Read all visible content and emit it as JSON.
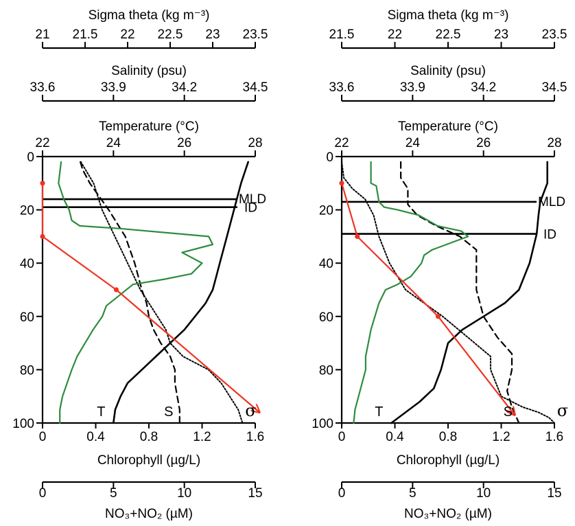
{
  "colors": {
    "temperature": "#000000",
    "salinity": "#000000",
    "sigma_theta": "#000000",
    "chlorophyll": "#2e8b3e",
    "nitrate": "#ee3424"
  },
  "axis_titles": {
    "sigma": "Sigma theta (kg m⁻³)",
    "salinity": "Salinity (psu)",
    "temperature": "Temperature (°C)",
    "chlorophyll": "Chlorophyll (µg/L)",
    "nitrate": "NO₃+NO₂ (µM)"
  },
  "curve_labels": {
    "temperature": "T",
    "salinity": "S",
    "sigma": "σ"
  },
  "chart_data": [
    {
      "type": "line",
      "panel": "left",
      "ylim": [
        100,
        0
      ],
      "yticks": [
        "0",
        "20",
        "40",
        "60",
        "80",
        "100"
      ],
      "axes": {
        "sigma": {
          "range": [
            21,
            23.5
          ],
          "ticks": [
            "21",
            "21.5",
            "22",
            "22.5",
            "23",
            "23.5"
          ]
        },
        "salinity": {
          "range": [
            33.6,
            34.5
          ],
          "ticks": [
            "33.6",
            "33.9",
            "34.2",
            "34.5"
          ]
        },
        "temperature": {
          "range": [
            22,
            28
          ],
          "ticks": [
            "22",
            "24",
            "26",
            "28"
          ]
        },
        "chlorophyll": {
          "range": [
            0,
            1.6
          ],
          "ticks": [
            "0",
            "0.4",
            "0.8",
            "1.2",
            "1.6"
          ]
        },
        "nitrate": {
          "range": [
            0,
            15
          ],
          "ticks": [
            "0",
            "5",
            "10",
            "15"
          ]
        }
      },
      "layers": [
        {
          "label": "MLD",
          "depth": 16
        },
        {
          "label": "ID",
          "depth": 19
        }
      ],
      "series": [
        {
          "var": "temperature",
          "x": [
            27.8,
            27.6,
            27.4,
            27.2,
            27.0,
            26.9,
            26.8,
            26.6,
            26.3,
            26.0,
            25.6,
            25.2,
            24.8,
            24.4,
            24.2,
            24.05,
            24.0
          ],
          "y": [
            2,
            10,
            20,
            30,
            40,
            45,
            50,
            55,
            60,
            65,
            70,
            75,
            80,
            85,
            90,
            95,
            100
          ]
        },
        {
          "var": "salinity",
          "x": [
            33.76,
            33.77,
            33.8,
            33.88,
            33.95,
            33.99,
            34.02,
            34.04,
            34.05,
            34.07,
            34.1,
            34.14,
            34.16,
            34.16,
            34.17,
            34.18,
            34.18
          ],
          "y": [
            2,
            5,
            10,
            20,
            30,
            40,
            50,
            55,
            60,
            65,
            70,
            75,
            80,
            85,
            90,
            95,
            100
          ]
        },
        {
          "var": "sigma",
          "x": [
            21.45,
            21.6,
            21.7,
            21.85,
            22.0,
            22.15,
            22.35,
            22.45,
            22.5,
            22.65,
            22.95,
            23.1,
            23.2,
            23.3,
            23.35
          ],
          "y": [
            2,
            10,
            20,
            30,
            40,
            50,
            60,
            65,
            70,
            75,
            80,
            85,
            90,
            95,
            100
          ]
        },
        {
          "var": "chlorophyll",
          "x": [
            0.14,
            0.12,
            0.16,
            0.2,
            0.22,
            0.28,
            0.58,
            1.25,
            1.28,
            1.05,
            1.2,
            1.12,
            0.92,
            0.68,
            0.58,
            0.48,
            0.45,
            0.38,
            0.32,
            0.26,
            0.22,
            0.15,
            0.13,
            0.13
          ],
          "y": [
            2,
            10,
            16,
            20,
            24,
            26,
            27,
            30,
            33,
            36,
            40,
            44,
            46,
            48,
            52,
            56,
            60,
            65,
            70,
            75,
            80,
            90,
            95,
            100
          ]
        },
        {
          "var": "nitrate",
          "x": [
            0,
            0,
            5.2,
            15.3
          ],
          "y": [
            10,
            30,
            50,
            96
          ],
          "markers": [
            true,
            true,
            true,
            false
          ]
        }
      ]
    },
    {
      "type": "line",
      "panel": "right",
      "ylim": [
        100,
        0
      ],
      "yticks": [
        "0",
        "20",
        "40",
        "60",
        "80",
        "100"
      ],
      "axes": {
        "sigma": {
          "range": [
            21.5,
            23.5
          ],
          "ticks": [
            "21.5",
            "22",
            "22.5",
            "23",
            "23.5"
          ]
        },
        "salinity": {
          "range": [
            33.6,
            34.5
          ],
          "ticks": [
            "33.6",
            "33.9",
            "34.2",
            "34.5"
          ]
        },
        "temperature": {
          "range": [
            22,
            28
          ],
          "ticks": [
            "22",
            "24",
            "26",
            "28"
          ]
        },
        "chlorophyll": {
          "range": [
            0,
            1.6
          ],
          "ticks": [
            "0",
            "0.4",
            "0.8",
            "1.2",
            "1.6"
          ]
        },
        "nitrate": {
          "range": [
            0,
            15
          ],
          "ticks": [
            "0",
            "5",
            "10",
            "15"
          ]
        }
      },
      "layers": [
        {
          "label": "MLD",
          "depth": 17
        },
        {
          "label": "ID",
          "depth": 29
        }
      ],
      "series": [
        {
          "var": "temperature",
          "x": [
            27.8,
            27.8,
            27.6,
            27.55,
            27.5,
            27.3,
            27.0,
            26.6,
            26.0,
            25.4,
            25.0,
            24.9,
            24.8,
            24.6,
            24.2,
            23.8,
            23.4
          ],
          "y": [
            2,
            10,
            17,
            22,
            29,
            40,
            50,
            55,
            60,
            65,
            70,
            75,
            80,
            87,
            92,
            96,
            100
          ]
        },
        {
          "var": "salinity",
          "x": [
            33.85,
            33.85,
            33.88,
            33.88,
            33.92,
            34.0,
            34.1,
            34.17,
            34.17,
            34.17,
            34.2,
            34.26,
            34.32,
            34.32,
            34.3,
            34.32,
            34.35
          ],
          "y": [
            2,
            8,
            12,
            18,
            22,
            26,
            30,
            35,
            40,
            50,
            60,
            68,
            74,
            80,
            88,
            94,
            100
          ]
        },
        {
          "var": "sigma",
          "x": [
            21.5,
            21.52,
            21.6,
            21.72,
            21.8,
            21.85,
            21.95,
            22.1,
            22.45,
            22.75,
            22.9,
            22.9,
            23.0,
            23.2,
            23.35,
            23.45,
            23.5
          ],
          "y": [
            2,
            8,
            12,
            16,
            22,
            30,
            40,
            50,
            60,
            70,
            75,
            80,
            90,
            94,
            96,
            98,
            100
          ]
        },
        {
          "var": "chlorophyll",
          "x": [
            0.22,
            0.22,
            0.26,
            0.28,
            0.32,
            0.42,
            0.58,
            0.72,
            0.9,
            0.95,
            0.68,
            0.62,
            0.6,
            0.52,
            0.42,
            0.33,
            0.28,
            0.25,
            0.22,
            0.2,
            0.18,
            0.18,
            0.1,
            0.09
          ],
          "y": [
            2,
            10,
            11,
            17,
            19,
            20,
            22,
            26,
            28,
            30,
            35,
            37,
            40,
            45,
            48,
            50,
            55,
            60,
            65,
            70,
            75,
            80,
            95,
            100
          ]
        },
        {
          "var": "nitrate",
          "x": [
            0,
            1.1,
            6.8,
            12.2
          ],
          "y": [
            10,
            30,
            60,
            97
          ],
          "markers": [
            true,
            true,
            true,
            false
          ]
        }
      ]
    }
  ]
}
